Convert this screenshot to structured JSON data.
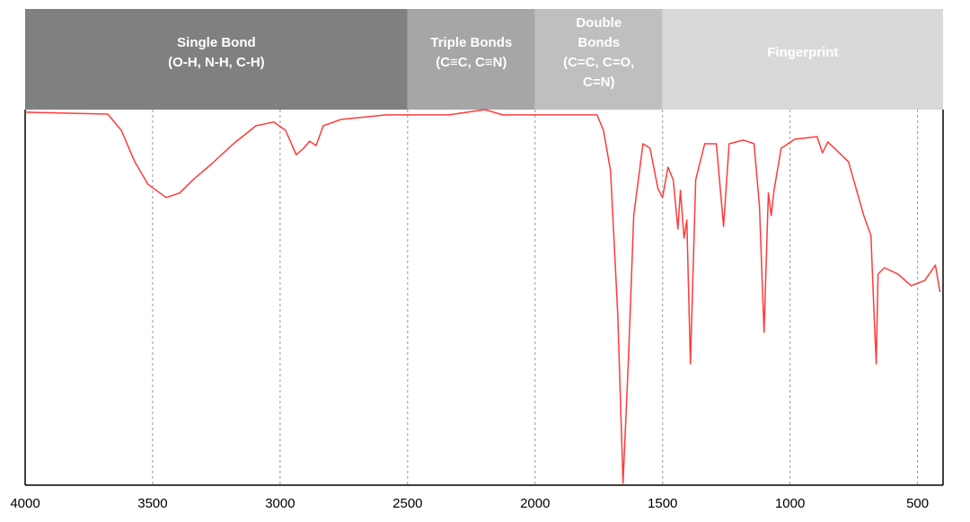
{
  "chart_data": {
    "type": "line",
    "xlim": [
      4000,
      400
    ],
    "ylim": [
      0,
      100
    ],
    "xticks": [
      4000,
      3500,
      3000,
      2500,
      2000,
      1500,
      1000,
      500
    ],
    "grid": true,
    "regions": [
      {
        "lines": [
          "Single Bond",
          "(O-H, N-H, C-H)"
        ],
        "from": 4000,
        "to": 2500,
        "color": "#808080"
      },
      {
        "lines": [
          "Triple Bonds",
          "(C≡C, C≡N)"
        ],
        "from": 2500,
        "to": 2000,
        "color": "#a6a6a6"
      },
      {
        "lines": [
          "Double",
          "Bonds",
          "(C=C, C=O,",
          "C=N)"
        ],
        "from": 2000,
        "to": 1500,
        "color": "#bfbfbf"
      },
      {
        "lines": [
          "Fingerprint"
        ],
        "from": 1500,
        "to": 400,
        "color": "#d9d9d9"
      }
    ],
    "series": [
      {
        "color": "#ff3b3b",
        "x": [
          4000,
          3676,
          3623,
          3570,
          3518,
          3447,
          3394,
          3342,
          3271,
          3183,
          3095,
          3025,
          2979,
          2937,
          2908,
          2884,
          2859,
          2831,
          2761,
          2585,
          2338,
          2197,
          2127,
          1986,
          1757,
          1732,
          1704,
          1676,
          1655,
          1634,
          1613,
          1577,
          1549,
          1518,
          1500,
          1479,
          1458,
          1440,
          1430,
          1416,
          1405,
          1391,
          1370,
          1335,
          1289,
          1261,
          1239,
          1183,
          1141,
          1120,
          1102,
          1085,
          1074,
          1063,
          1035,
          982,
          894,
          873,
          852,
          771,
          711,
          683,
          669,
          662,
          655,
          630,
          577,
          525,
          472,
          430,
          412
        ],
        "values": [
          99.3,
          98.8,
          94.5,
          86.1,
          80.1,
          76.6,
          77.8,
          81.3,
          85.4,
          90.9,
          95.7,
          96.7,
          94.5,
          88.0,
          89.7,
          91.6,
          90.4,
          95.7,
          97.4,
          98.6,
          98.6,
          100,
          98.6,
          98.6,
          98.6,
          94.5,
          83.7,
          45.5,
          0.5,
          33.5,
          71.8,
          90.9,
          89.7,
          78.9,
          76.6,
          84.7,
          81.3,
          68.2,
          78.5,
          65.8,
          70.6,
          32.3,
          81.3,
          90.9,
          90.9,
          68.9,
          90.9,
          91.9,
          90.9,
          74.2,
          40.7,
          77.8,
          71.8,
          78.5,
          89.7,
          92.1,
          92.8,
          88.5,
          91.4,
          86.1,
          71.8,
          66.5,
          43.1,
          32.3,
          56.2,
          57.9,
          56.2,
          53.1,
          54.5,
          58.6,
          51.4
        ]
      }
    ]
  }
}
